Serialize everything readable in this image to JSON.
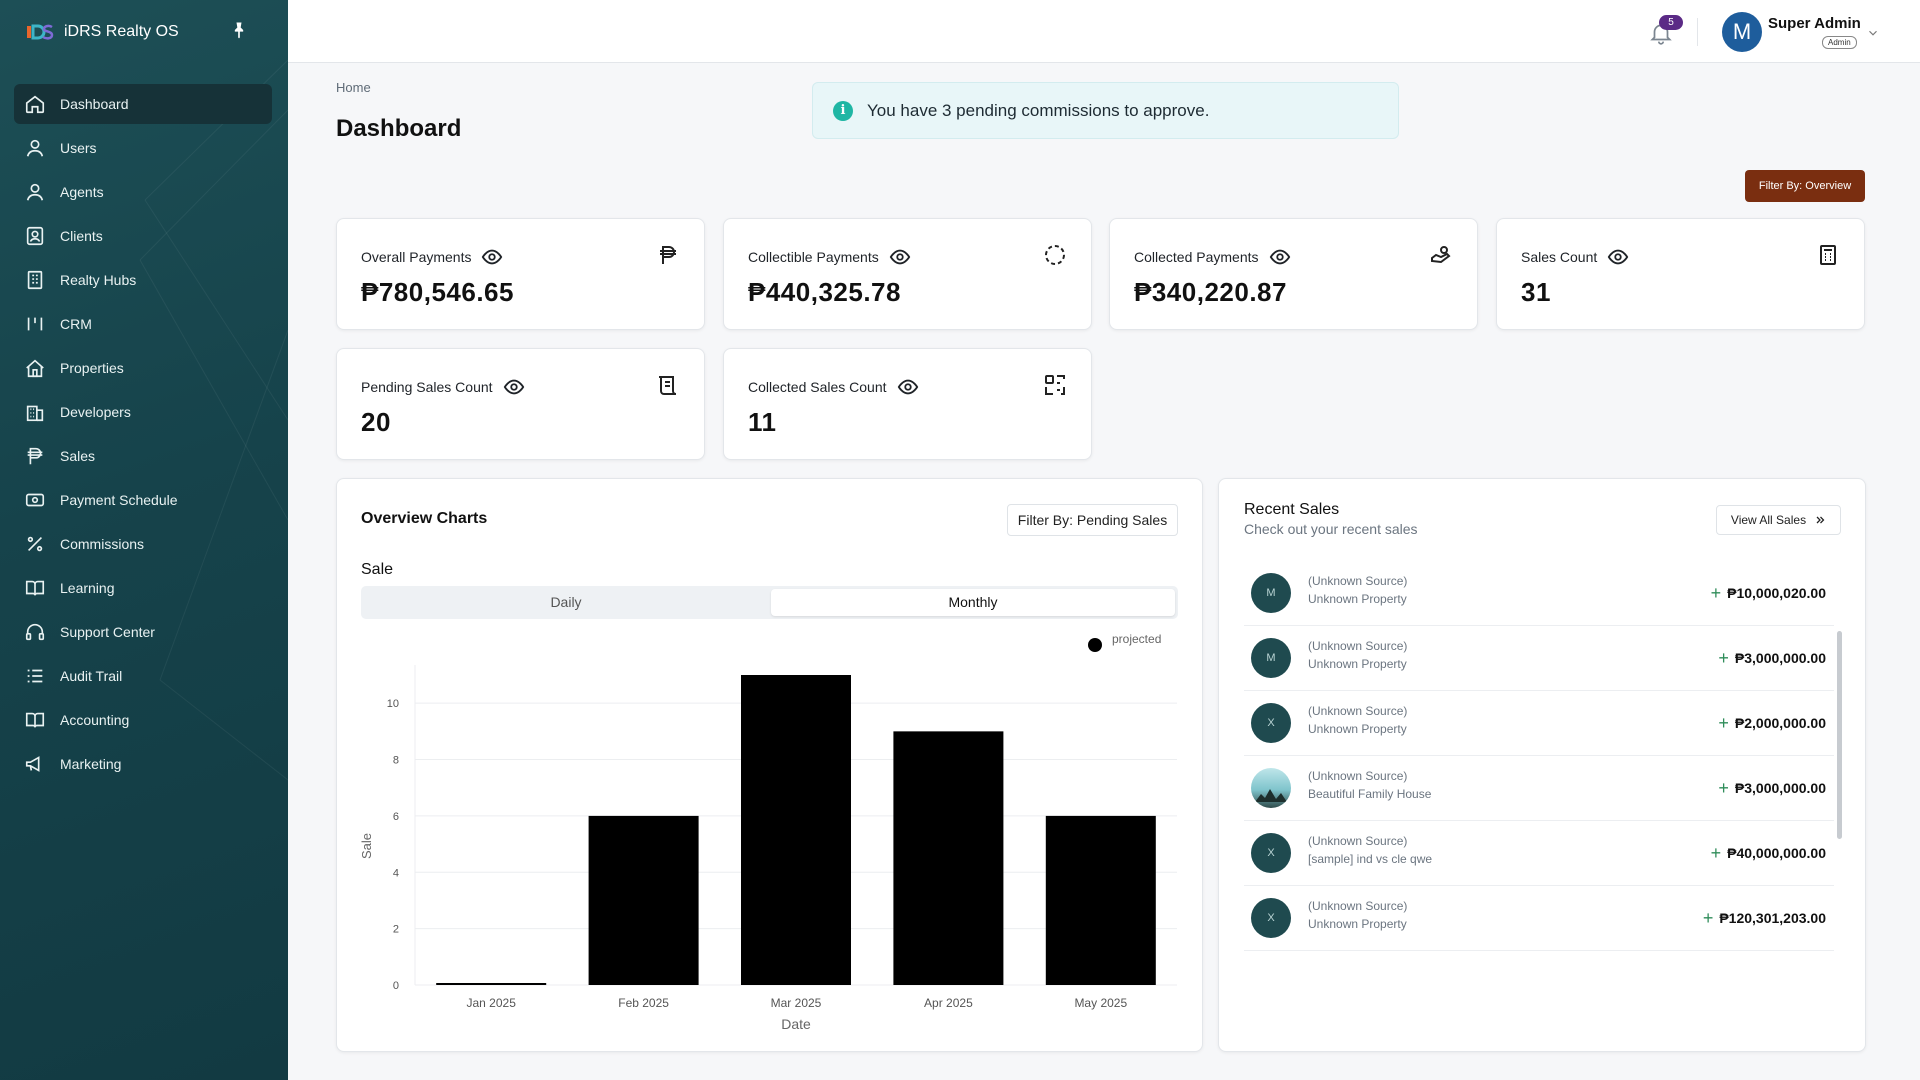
{
  "app": {
    "name": "iDRS Realty OS"
  },
  "sidebar": {
    "items": [
      {
        "label": "Dashboard",
        "icon": "home-icon"
      },
      {
        "label": "Users",
        "icon": "user-icon"
      },
      {
        "label": "Agents",
        "icon": "user-icon"
      },
      {
        "label": "Clients",
        "icon": "contact-card-icon"
      },
      {
        "label": "Realty Hubs",
        "icon": "building-icon"
      },
      {
        "label": "CRM",
        "icon": "columns-icon"
      },
      {
        "label": "Properties",
        "icon": "house-icon"
      },
      {
        "label": "Developers",
        "icon": "office-icon"
      },
      {
        "label": "Sales",
        "icon": "peso-icon"
      },
      {
        "label": "Payment Schedule",
        "icon": "cash-icon"
      },
      {
        "label": "Commissions",
        "icon": "percent-icon"
      },
      {
        "label": "Learning",
        "icon": "book-icon"
      },
      {
        "label": "Support Center",
        "icon": "headset-icon"
      },
      {
        "label": "Audit Trail",
        "icon": "list-icon"
      },
      {
        "label": "Accounting",
        "icon": "book-open-icon"
      },
      {
        "label": "Marketing",
        "icon": "megaphone-icon"
      }
    ]
  },
  "header": {
    "notifications": "5",
    "user": {
      "initial": "M",
      "name": "Super Admin",
      "role": "Admin"
    }
  },
  "main": {
    "breadcrumb": "Home",
    "title": "Dashboard",
    "alert": "You have 3 pending commissions to approve.",
    "filter_overview": "Filter By: Overview"
  },
  "stats": [
    {
      "label": "Overall Payments",
      "value": "₱780,546.65"
    },
    {
      "label": "Collectible Payments",
      "value": "₱440,325.78"
    },
    {
      "label": "Collected Payments",
      "value": "₱340,220.87"
    },
    {
      "label": "Sales Count",
      "value": "31"
    },
    {
      "label": "Pending Sales Count",
      "value": "20"
    },
    {
      "label": "Collected Sales Count",
      "value": "11"
    }
  ],
  "overview": {
    "title": "Overview Charts",
    "filter": "Filter By: Pending Sales",
    "sale_label": "Sale",
    "tabs": {
      "daily": "Daily",
      "monthly": "Monthly"
    }
  },
  "chart_data": {
    "type": "bar",
    "categories": [
      "Jan 2025",
      "Feb 2025",
      "Mar 2025",
      "Apr 2025",
      "May 2025"
    ],
    "values": [
      0,
      6,
      11,
      9,
      6
    ],
    "series": [
      {
        "name": "projected",
        "values": [
          0,
          6,
          11,
          9,
          6
        ]
      }
    ],
    "xlabel": "Date",
    "ylabel": "Sale",
    "ylim": [
      0,
      11
    ],
    "yticks": [
      0,
      2,
      4,
      6,
      8,
      10
    ],
    "legend": "top-right",
    "grid": true,
    "bar_color": "#000000"
  },
  "recent": {
    "title": "Recent Sales",
    "subtitle": "Check out your recent sales",
    "view_all": "View All Sales",
    "rows": [
      {
        "avatar": "M",
        "source": "(Unknown Source)",
        "property": "Unknown Property",
        "amount": "₱10,000,020.00"
      },
      {
        "avatar": "M",
        "source": "(Unknown Source)",
        "property": "Unknown Property",
        "amount": "₱3,000,000.00"
      },
      {
        "avatar": "X",
        "source": "(Unknown Source)",
        "property": "Unknown Property",
        "amount": "₱2,000,000.00"
      },
      {
        "avatar": "",
        "source": "(Unknown Source)",
        "property": "Beautiful Family House",
        "amount": "₱3,000,000.00"
      },
      {
        "avatar": "X",
        "source": "(Unknown Source)",
        "property": "[sample] ind vs cle qwe",
        "amount": "₱40,000,000.00"
      },
      {
        "avatar": "X",
        "source": "(Unknown Source)",
        "property": "Unknown Property",
        "amount": "₱120,301,203.00"
      }
    ]
  },
  "colors": {
    "sidebar": "#16434b",
    "accent_button": "#7a2e10",
    "alert_bg": "#e8f6f8",
    "alert_icon": "#1fb6a4",
    "badge": "#5b2a86"
  }
}
